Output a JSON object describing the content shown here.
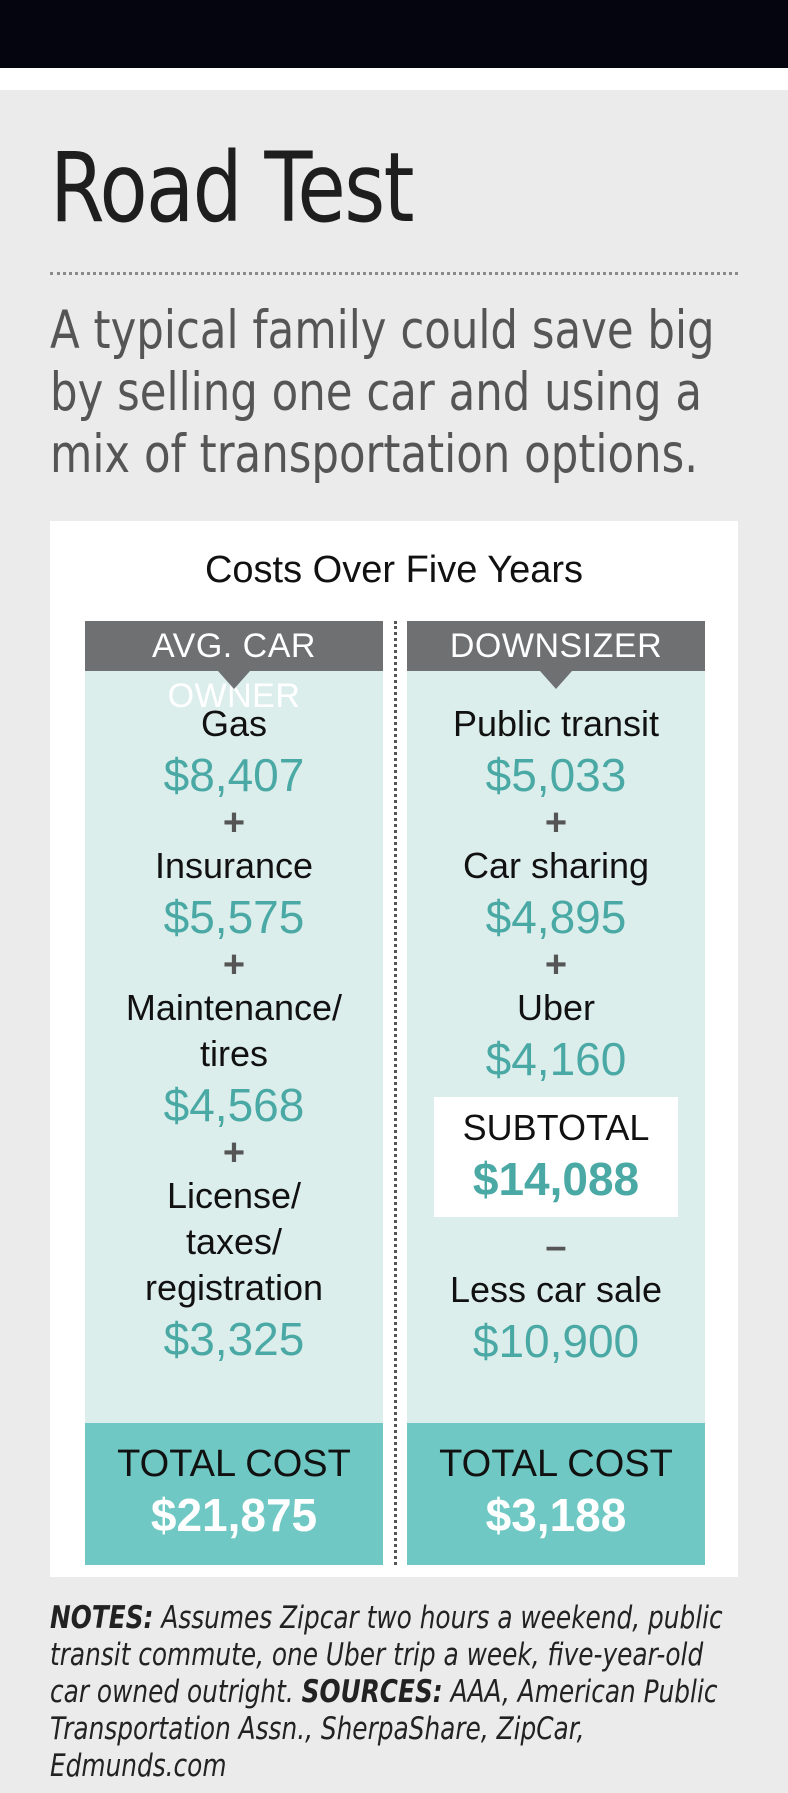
{
  "title": "Road Test",
  "subtitle": "A typical family could save big by selling one car and using a mix of transportation options.",
  "panel_title": "Costs Over Five Years",
  "columns": [
    {
      "header": "AVG. CAR OWNER",
      "items": [
        {
          "label": "Gas",
          "amount": "$8,407"
        },
        {
          "label": "Insurance",
          "amount": "$5,575"
        },
        {
          "label": "Maintenance/ tires",
          "amount": "$4,568"
        },
        {
          "label": "License/ taxes/ registration",
          "amount": "$3,325"
        }
      ],
      "operator": "+",
      "total_label": "TOTAL COST",
      "total_amount": "$21,875"
    },
    {
      "header": "DOWNSIZER",
      "items": [
        {
          "label": "Public transit",
          "amount": "$5,033"
        },
        {
          "label": "Car sharing",
          "amount": "$4,895"
        },
        {
          "label": "Uber",
          "amount": "$4,160"
        }
      ],
      "operator": "+",
      "subtotal_label": "SUBTOTAL",
      "subtotal_amount": "$14,088",
      "minus": "–",
      "less_label": "Less car sale",
      "less_amount": "$10,900",
      "total_label": "TOTAL COST",
      "total_amount": "$3,188"
    }
  ],
  "notes": {
    "notes_label": "NOTES:",
    "notes_text": "Assumes Zipcar two hours a weekend, public transit commute, one Uber trip a week, five-year-old car owned outright.",
    "sources_label": "SOURCES:",
    "sources_text": "AAA, American Public Transportation Assn., SherpaShare, ZipCar, Edmunds.com"
  },
  "colors": {
    "accent_teal": "#4aa9a4",
    "total_band": "#6fc8c3",
    "column_bg": "#dceeec",
    "header_gray": "#6f7072"
  }
}
